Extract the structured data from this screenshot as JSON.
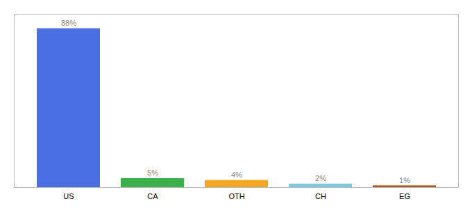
{
  "chart_data": {
    "type": "bar",
    "categories": [
      "US",
      "CA",
      "OTH",
      "CH",
      "EG"
    ],
    "values": [
      88,
      5,
      4,
      2,
      1
    ],
    "value_labels": [
      "88%",
      "5%",
      "4%",
      "2%",
      "1%"
    ],
    "colors": [
      "#4A6FE3",
      "#3BAF4A",
      "#F5A623",
      "#7EC8E3",
      "#B5541C"
    ],
    "ylim": [
      0,
      96
    ],
    "data_labels": true,
    "tick_labels": "x",
    "grid": false
  }
}
